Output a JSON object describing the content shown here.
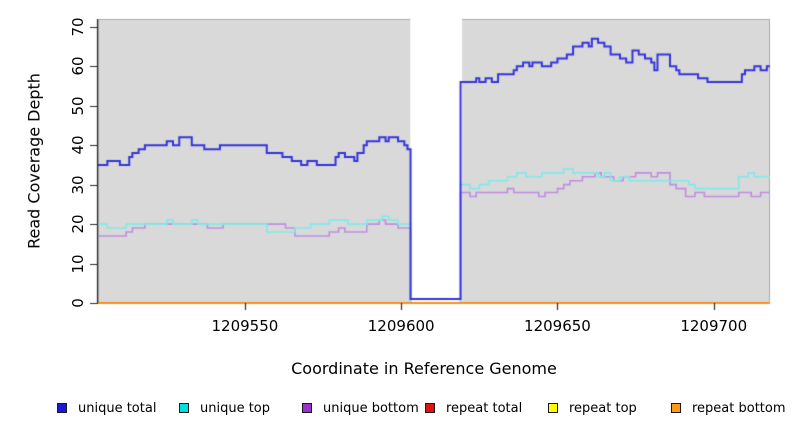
{
  "chart_data": {
    "type": "line",
    "subtype": "step",
    "title": "",
    "xlabel": "Coordinate in Reference Genome",
    "ylabel": "Read Coverage Depth",
    "xlim": [
      1209503,
      1209718
    ],
    "ylim": [
      0,
      72
    ],
    "x_ticks": [
      1209550,
      1209600,
      1209650,
      1209700
    ],
    "y_ticks": [
      0,
      10,
      20,
      30,
      40,
      50,
      60,
      70
    ],
    "grid": false,
    "legend_position": "bottom",
    "panel_bg": "#d9d9d9",
    "panel_border": "#a9a9a9",
    "axis_color": "#2b2b2b",
    "gap_region": {
      "x_start": 1209602.9,
      "x_end": 1209619.5,
      "fill": "#ffffff"
    },
    "series": [
      {
        "name": "unique total",
        "line_color": "#3434dc",
        "legend_color": "#1a1ad9",
        "line_width": 2,
        "steps": [
          [
            1209503,
            35
          ],
          [
            1209506,
            36
          ],
          [
            1209510,
            35
          ],
          [
            1209513,
            37
          ],
          [
            1209514,
            38
          ],
          [
            1209516,
            39
          ],
          [
            1209518,
            40
          ],
          [
            1209525,
            41
          ],
          [
            1209527,
            40
          ],
          [
            1209529,
            42
          ],
          [
            1209533,
            40
          ],
          [
            1209537,
            39
          ],
          [
            1209542,
            40
          ],
          [
            1209557,
            38
          ],
          [
            1209562,
            37
          ],
          [
            1209565,
            36
          ],
          [
            1209568,
            35
          ],
          [
            1209570,
            36
          ],
          [
            1209573,
            35
          ],
          [
            1209579,
            37
          ],
          [
            1209580,
            38
          ],
          [
            1209582,
            37
          ],
          [
            1209585,
            36
          ],
          [
            1209586,
            38
          ],
          [
            1209588,
            40
          ],
          [
            1209589,
            41
          ],
          [
            1209593,
            42
          ],
          [
            1209595,
            41
          ],
          [
            1209596,
            42
          ],
          [
            1209599,
            41
          ],
          [
            1209601,
            40
          ],
          [
            1209602,
            39
          ],
          [
            1209603,
            1
          ],
          [
            1209619,
            56
          ],
          [
            1209624,
            57
          ],
          [
            1209625,
            56
          ],
          [
            1209627,
            57
          ],
          [
            1209629,
            56
          ],
          [
            1209631,
            58
          ],
          [
            1209636,
            59
          ],
          [
            1209637,
            60
          ],
          [
            1209639,
            61
          ],
          [
            1209641,
            60
          ],
          [
            1209642,
            61
          ],
          [
            1209645,
            60
          ],
          [
            1209648,
            61
          ],
          [
            1209650,
            62
          ],
          [
            1209653,
            63
          ],
          [
            1209655,
            65
          ],
          [
            1209658,
            66
          ],
          [
            1209660,
            65
          ],
          [
            1209661,
            67
          ],
          [
            1209663,
            66
          ],
          [
            1209665,
            65
          ],
          [
            1209667,
            63
          ],
          [
            1209670,
            62
          ],
          [
            1209672,
            61
          ],
          [
            1209674,
            64
          ],
          [
            1209676,
            63
          ],
          [
            1209678,
            62
          ],
          [
            1209680,
            61
          ],
          [
            1209681,
            59
          ],
          [
            1209682,
            63
          ],
          [
            1209686,
            60
          ],
          [
            1209688,
            59
          ],
          [
            1209689,
            58
          ],
          [
            1209695,
            57
          ],
          [
            1209698,
            56
          ],
          [
            1209709,
            58
          ],
          [
            1209710,
            59
          ],
          [
            1209713,
            60
          ],
          [
            1209715,
            59
          ],
          [
            1209717,
            60
          ]
        ]
      },
      {
        "name": "unique top",
        "line_color": "#84e8e8",
        "legend_color": "#00dede",
        "line_width": 1.6,
        "steps": [
          [
            1209503,
            20
          ],
          [
            1209506,
            19
          ],
          [
            1209512,
            20
          ],
          [
            1209525,
            21
          ],
          [
            1209527,
            20
          ],
          [
            1209533,
            21
          ],
          [
            1209535,
            20
          ],
          [
            1209557,
            18
          ],
          [
            1209566,
            19
          ],
          [
            1209571,
            20
          ],
          [
            1209577,
            21
          ],
          [
            1209583,
            20
          ],
          [
            1209589,
            21
          ],
          [
            1209594,
            22
          ],
          [
            1209596,
            21
          ],
          [
            1209599,
            20
          ],
          [
            1209603,
            0
          ],
          [
            1209619,
            30
          ],
          [
            1209622,
            29
          ],
          [
            1209625,
            30
          ],
          [
            1209628,
            31
          ],
          [
            1209634,
            32
          ],
          [
            1209637,
            33
          ],
          [
            1209640,
            32
          ],
          [
            1209645,
            33
          ],
          [
            1209652,
            34
          ],
          [
            1209655,
            33
          ],
          [
            1209663,
            32
          ],
          [
            1209665,
            33
          ],
          [
            1209667,
            31
          ],
          [
            1209670,
            32
          ],
          [
            1209673,
            31
          ],
          [
            1209692,
            30
          ],
          [
            1209694,
            29
          ],
          [
            1209708,
            32
          ],
          [
            1209711,
            33
          ],
          [
            1209713,
            32
          ]
        ]
      },
      {
        "name": "unique bottom",
        "line_color": "#c08fe0",
        "legend_color": "#9933cc",
        "line_width": 1.6,
        "steps": [
          [
            1209503,
            17
          ],
          [
            1209512,
            18
          ],
          [
            1209514,
            19
          ],
          [
            1209518,
            20
          ],
          [
            1209538,
            19
          ],
          [
            1209543,
            20
          ],
          [
            1209563,
            19
          ],
          [
            1209566,
            17
          ],
          [
            1209577,
            18
          ],
          [
            1209580,
            19
          ],
          [
            1209582,
            18
          ],
          [
            1209589,
            20
          ],
          [
            1209593,
            21
          ],
          [
            1209595,
            20
          ],
          [
            1209599,
            19
          ],
          [
            1209603,
            0
          ],
          [
            1209619,
            28
          ],
          [
            1209622,
            27
          ],
          [
            1209624,
            28
          ],
          [
            1209634,
            29
          ],
          [
            1209636,
            28
          ],
          [
            1209644,
            27
          ],
          [
            1209646,
            28
          ],
          [
            1209650,
            29
          ],
          [
            1209652,
            30
          ],
          [
            1209654,
            31
          ],
          [
            1209658,
            32
          ],
          [
            1209662,
            33
          ],
          [
            1209664,
            32
          ],
          [
            1209668,
            31
          ],
          [
            1209671,
            32
          ],
          [
            1209675,
            33
          ],
          [
            1209680,
            32
          ],
          [
            1209682,
            33
          ],
          [
            1209686,
            30
          ],
          [
            1209688,
            29
          ],
          [
            1209691,
            27
          ],
          [
            1209694,
            28
          ],
          [
            1209697,
            27
          ],
          [
            1209708,
            28
          ],
          [
            1209712,
            27
          ],
          [
            1209715,
            28
          ]
        ]
      },
      {
        "name": "repeat total",
        "line_color": "#dd1c1c",
        "legend_color": "#e01212",
        "line_width": 1.6,
        "steps": [
          [
            1209503,
            0
          ]
        ]
      },
      {
        "name": "repeat top",
        "line_color": "#f0f000",
        "legend_color": "#ffff00",
        "line_width": 1.6,
        "steps": [
          [
            1209503,
            0
          ]
        ]
      },
      {
        "name": "repeat bottom",
        "line_color": "#ff8c1a",
        "legend_color": "#ff9814",
        "line_width": 2,
        "steps": [
          [
            1209503,
            0
          ]
        ]
      }
    ]
  },
  "legend": {
    "items": [
      {
        "label": "unique total",
        "color": "#1a1ad9"
      },
      {
        "label": "unique top",
        "color": "#00dede"
      },
      {
        "label": "unique bottom",
        "color": "#9933cc"
      },
      {
        "label": "repeat total",
        "color": "#e01212"
      },
      {
        "label": "repeat top",
        "color": "#ffff00"
      },
      {
        "label": "repeat bottom",
        "color": "#ff9814"
      }
    ]
  }
}
